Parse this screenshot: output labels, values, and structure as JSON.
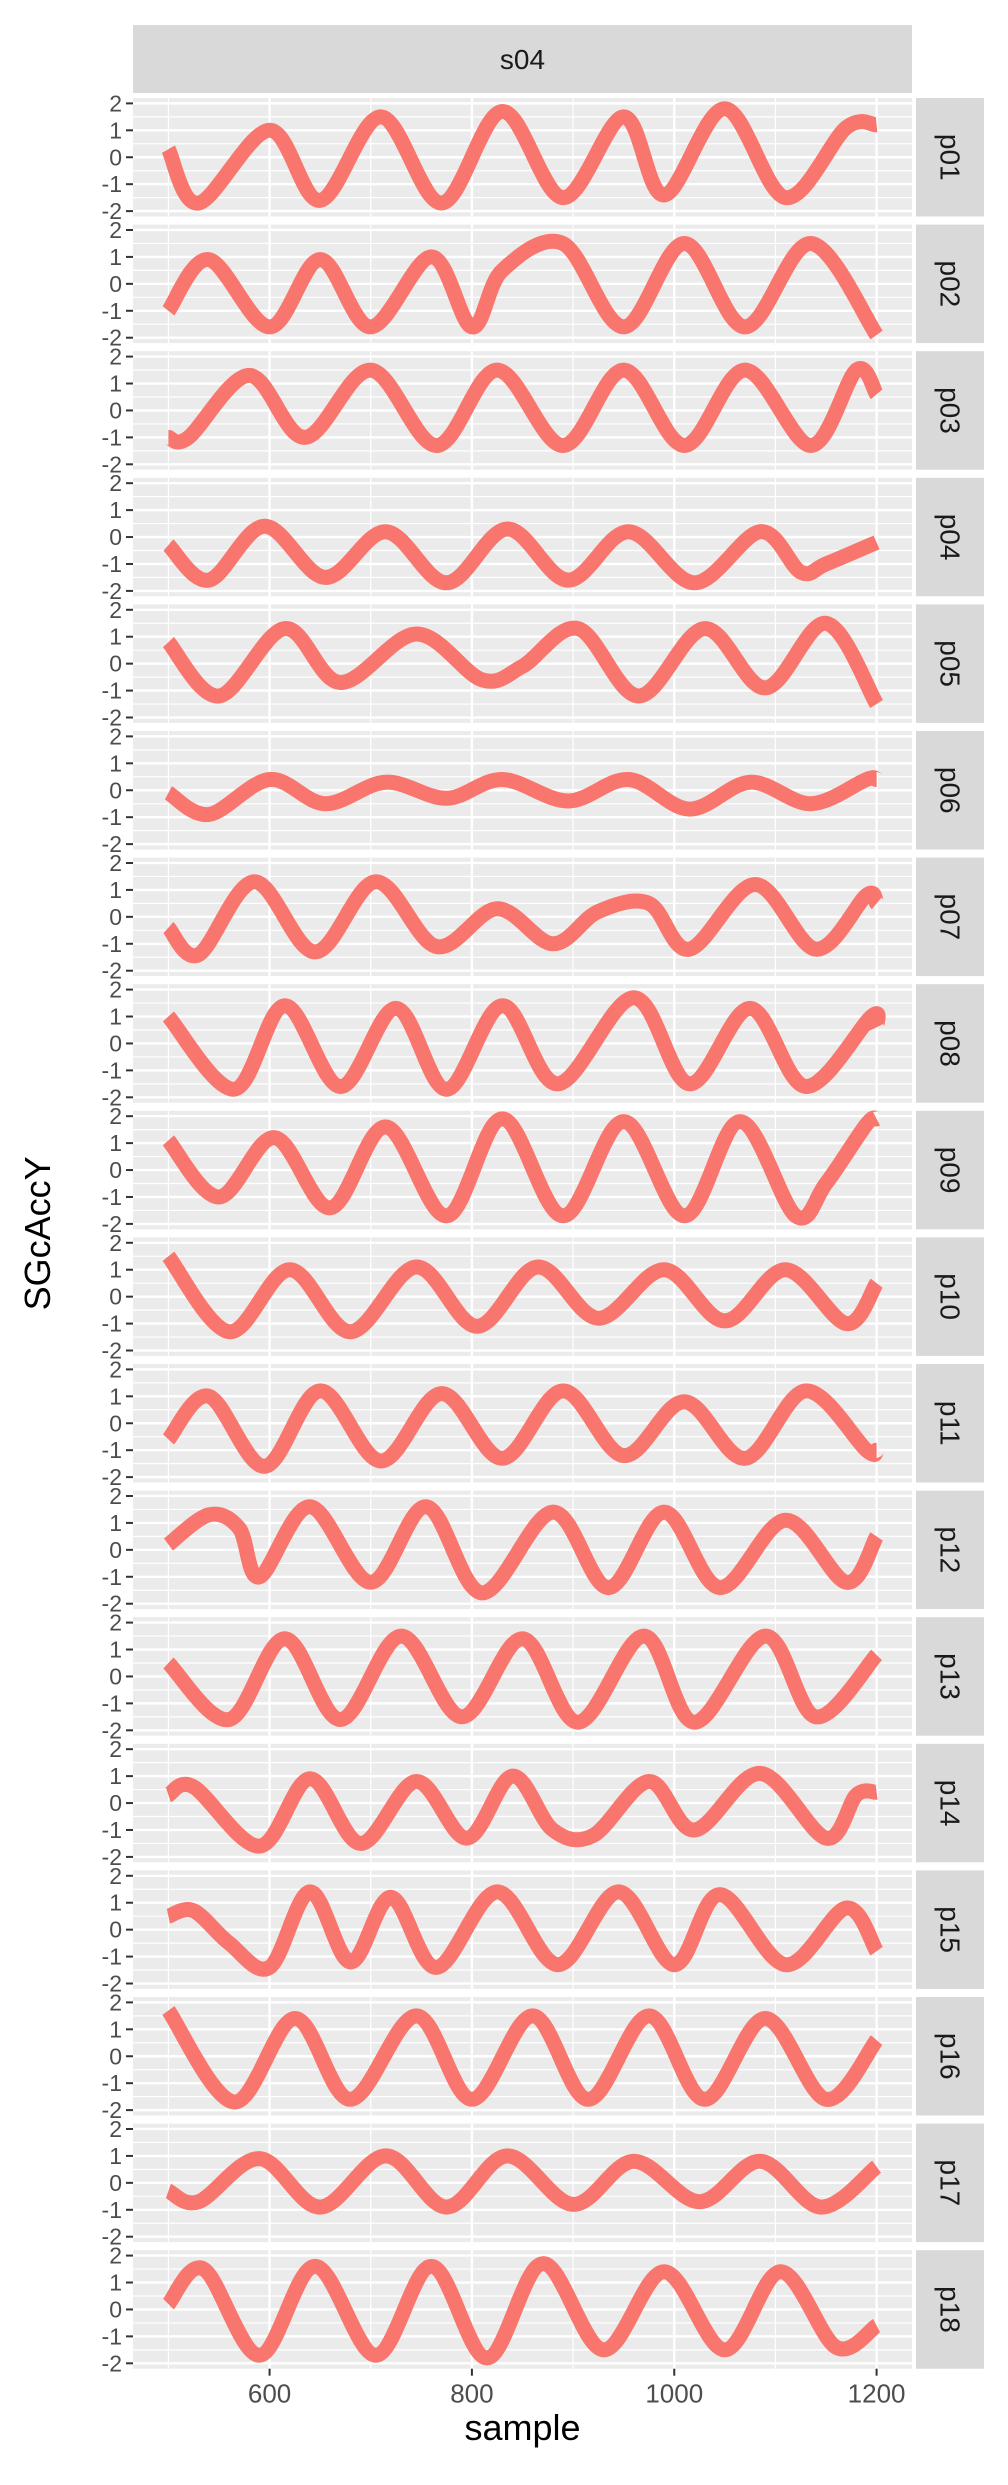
{
  "chart_data": {
    "type": "line",
    "facet_column_label": "s04",
    "xlabel": "sample",
    "ylabel": "SGcAccY",
    "xlim": [
      465,
      1235
    ],
    "ylim": [
      -2.2,
      2.2
    ],
    "x_ticks": [
      600,
      800,
      1000,
      1200
    ],
    "x_tick_labels": [
      "600",
      "800",
      "1000",
      "1200"
    ],
    "y_ticks": [
      -2,
      -1,
      0,
      1,
      2
    ],
    "y_tick_labels": [
      "-2",
      "-1",
      "0",
      "1",
      "2"
    ],
    "grid": true,
    "line_color": "#F8766D",
    "panel_background": "#EBEBEB",
    "strip_background": "#D9D9D9",
    "panels": [
      {
        "label": "p01",
        "x": [
          500,
          530,
          600,
          650,
          710,
          770,
          830,
          890,
          950,
          990,
          1050,
          1110,
          1170,
          1200
        ],
        "y": [
          0.3,
          -1.7,
          1.0,
          -1.6,
          1.5,
          -1.7,
          1.7,
          -1.5,
          1.5,
          -1.4,
          1.8,
          -1.5,
          1.1,
          1.2
        ]
      },
      {
        "label": "p02",
        "x": [
          500,
          540,
          600,
          650,
          700,
          760,
          800,
          830,
          890,
          950,
          1010,
          1070,
          1135,
          1200
        ],
        "y": [
          -1.0,
          0.9,
          -1.6,
          0.9,
          -1.6,
          1.0,
          -1.6,
          0.5,
          1.5,
          -1.6,
          1.5,
          -1.6,
          1.5,
          -1.9
        ]
      },
      {
        "label": "p03",
        "x": [
          500,
          520,
          580,
          635,
          700,
          765,
          825,
          890,
          950,
          1010,
          1070,
          1135,
          1180,
          1200
        ],
        "y": [
          -1.0,
          -1.0,
          1.3,
          -1.0,
          1.5,
          -1.3,
          1.5,
          -1.3,
          1.5,
          -1.3,
          1.5,
          -1.3,
          1.5,
          0.6
        ]
      },
      {
        "label": "p04",
        "x": [
          500,
          540,
          595,
          655,
          715,
          775,
          835,
          895,
          955,
          1020,
          1085,
          1125,
          1150,
          1200
        ],
        "y": [
          -0.3,
          -1.6,
          0.4,
          -1.5,
          0.2,
          -1.7,
          0.3,
          -1.6,
          0.2,
          -1.7,
          0.2,
          -1.3,
          -1.0,
          -0.2
        ]
      },
      {
        "label": "p05",
        "x": [
          500,
          550,
          615,
          670,
          745,
          810,
          850,
          905,
          965,
          1030,
          1090,
          1150,
          1200
        ],
        "y": [
          0.8,
          -1.2,
          1.3,
          -0.7,
          1.1,
          -0.6,
          -0.1,
          1.3,
          -1.2,
          1.3,
          -0.9,
          1.5,
          -1.5
        ]
      },
      {
        "label": "p06",
        "x": [
          500,
          540,
          600,
          655,
          715,
          775,
          830,
          895,
          955,
          1015,
          1075,
          1135,
          1190,
          1200
        ],
        "y": [
          -0.1,
          -0.9,
          0.4,
          -0.5,
          0.3,
          -0.3,
          0.4,
          -0.4,
          0.4,
          -0.7,
          0.3,
          -0.5,
          0.4,
          0.4
        ]
      },
      {
        "label": "p07",
        "x": [
          500,
          530,
          585,
          645,
          705,
          765,
          825,
          880,
          925,
          975,
          1015,
          1080,
          1140,
          1190,
          1200
        ],
        "y": [
          -0.4,
          -1.4,
          1.3,
          -1.3,
          1.3,
          -1.1,
          0.3,
          -1.0,
          0.2,
          0.5,
          -1.2,
          1.2,
          -1.2,
          0.8,
          0.5
        ]
      },
      {
        "label": "p08",
        "x": [
          500,
          565,
          615,
          670,
          725,
          775,
          830,
          885,
          960,
          1015,
          1075,
          1130,
          1195,
          1200
        ],
        "y": [
          1.0,
          -1.7,
          1.4,
          -1.6,
          1.3,
          -1.7,
          1.4,
          -1.5,
          1.7,
          -1.5,
          1.3,
          -1.6,
          1.0,
          0.6
        ]
      },
      {
        "label": "p09",
        "x": [
          500,
          550,
          605,
          660,
          715,
          775,
          830,
          890,
          950,
          1010,
          1065,
          1120,
          1150,
          1190,
          1200
        ],
        "y": [
          1.1,
          -1.0,
          1.2,
          -1.4,
          1.6,
          -1.7,
          1.9,
          -1.7,
          1.8,
          -1.7,
          1.8,
          -1.7,
          -0.5,
          1.7,
          1.9
        ]
      },
      {
        "label": "p10",
        "x": [
          500,
          560,
          620,
          680,
          745,
          805,
          865,
          925,
          990,
          1050,
          1110,
          1170,
          1200
        ],
        "y": [
          1.5,
          -1.3,
          1.0,
          -1.3,
          1.1,
          -1.1,
          1.1,
          -0.8,
          1.0,
          -0.9,
          1.0,
          -1.0,
          0.5
        ]
      },
      {
        "label": "p11",
        "x": [
          500,
          540,
          595,
          650,
          710,
          770,
          830,
          890,
          950,
          1010,
          1070,
          1130,
          1190,
          1200
        ],
        "y": [
          -0.6,
          1.0,
          -1.6,
          1.2,
          -1.4,
          1.1,
          -1.3,
          1.2,
          -1.2,
          0.8,
          -1.3,
          1.2,
          -1.0,
          -1.0
        ]
      },
      {
        "label": "p12",
        "x": [
          500,
          540,
          570,
          590,
          640,
          700,
          755,
          810,
          880,
          935,
          990,
          1045,
          1110,
          1170,
          1200
        ],
        "y": [
          0.2,
          1.3,
          0.8,
          -1.0,
          1.6,
          -1.2,
          1.6,
          -1.6,
          1.4,
          -1.4,
          1.4,
          -1.4,
          1.1,
          -1.2,
          0.5
        ]
      },
      {
        "label": "p13",
        "x": [
          500,
          560,
          615,
          670,
          730,
          790,
          850,
          905,
          970,
          1020,
          1090,
          1140,
          1200
        ],
        "y": [
          0.5,
          -1.6,
          1.4,
          -1.6,
          1.5,
          -1.5,
          1.4,
          -1.7,
          1.5,
          -1.7,
          1.5,
          -1.5,
          0.8
        ]
      },
      {
        "label": "p14",
        "x": [
          500,
          525,
          590,
          640,
          690,
          745,
          795,
          840,
          880,
          920,
          975,
          1020,
          1085,
          1150,
          1180,
          1200
        ],
        "y": [
          0.3,
          0.6,
          -1.6,
          0.9,
          -1.5,
          0.8,
          -1.3,
          1.0,
          -1.0,
          -1.2,
          0.8,
          -1.0,
          1.1,
          -1.3,
          0.3,
          0.4
        ]
      },
      {
        "label": "p15",
        "x": [
          500,
          525,
          560,
          600,
          640,
          680,
          720,
          765,
          825,
          885,
          945,
          1000,
          1045,
          1110,
          1170,
          1200
        ],
        "y": [
          0.5,
          0.7,
          -0.5,
          -1.4,
          1.4,
          -1.2,
          1.2,
          -1.4,
          1.4,
          -1.3,
          1.4,
          -1.3,
          1.3,
          -1.3,
          0.8,
          -0.8
        ]
      },
      {
        "label": "p16",
        "x": [
          500,
          565,
          625,
          680,
          745,
          800,
          860,
          915,
          975,
          1030,
          1090,
          1150,
          1200
        ],
        "y": [
          1.7,
          -1.7,
          1.4,
          -1.6,
          1.5,
          -1.6,
          1.5,
          -1.6,
          1.5,
          -1.6,
          1.4,
          -1.6,
          0.6
        ]
      },
      {
        "label": "p17",
        "x": [
          500,
          530,
          590,
          650,
          715,
          775,
          835,
          900,
          960,
          1025,
          1085,
          1145,
          1200
        ],
        "y": [
          -0.3,
          -0.7,
          0.9,
          -0.9,
          1.0,
          -0.9,
          1.0,
          -0.8,
          0.8,
          -0.7,
          0.8,
          -0.9,
          0.6
        ]
      },
      {
        "label": "p18",
        "x": [
          500,
          535,
          590,
          645,
          705,
          760,
          815,
          870,
          930,
          990,
          1050,
          1105,
          1160,
          1200
        ],
        "y": [
          0.2,
          1.5,
          -1.7,
          1.6,
          -1.7,
          1.6,
          -1.8,
          1.7,
          -1.5,
          1.4,
          -1.5,
          1.4,
          -1.4,
          -0.6
        ]
      }
    ]
  }
}
